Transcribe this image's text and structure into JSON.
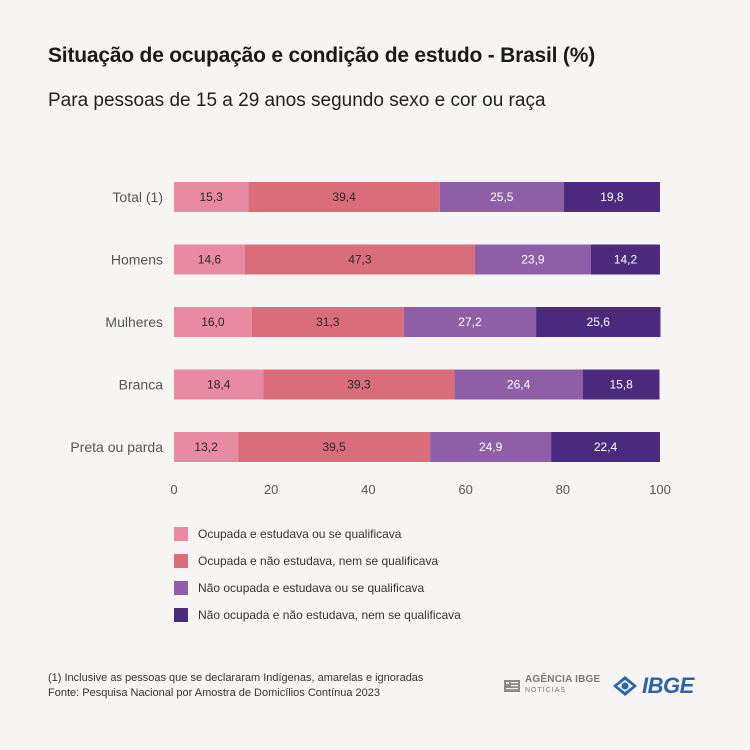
{
  "chart_data": {
    "type": "bar",
    "orientation": "horizontal",
    "stacked": true,
    "title": "Situação de ocupação e condição de estudo - Brasil (%)",
    "subtitle": "Para pessoas de 15 a 29 anos segundo sexo e cor ou raça",
    "categories": [
      "Total (1)",
      "Homens",
      "Mulheres",
      "Branca",
      "Preta ou parda"
    ],
    "series": [
      {
        "name": "Ocupada e estudava ou se qualificava",
        "color": "#e98aa3",
        "values": [
          15.3,
          14.6,
          16.0,
          18.4,
          13.2
        ],
        "labels": [
          "15,3",
          "14,6",
          "16,0",
          "18,4",
          "13,2"
        ]
      },
      {
        "name": "Ocupada e não estudava, nem se qualificava",
        "color": "#d96d7a",
        "values": [
          39.4,
          47.3,
          31.3,
          39.3,
          39.5
        ],
        "labels": [
          "39,4",
          "47,3",
          "31,3",
          "39,3",
          "39,5"
        ]
      },
      {
        "name": "Não ocupada e estudava ou se qualificava",
        "color": "#8e5fa6",
        "values": [
          25.5,
          23.9,
          27.2,
          26.4,
          24.9
        ],
        "labels": [
          "25,5",
          "23,9",
          "27,2",
          "26,4",
          "24,9"
        ]
      },
      {
        "name": "Não ocupada e não estudava, nem se qualificava",
        "color": "#4b2a7d",
        "values": [
          19.8,
          14.2,
          25.6,
          15.8,
          22.4
        ],
        "labels": [
          "19,8",
          "14,2",
          "25,6",
          "15,8",
          "22,4"
        ]
      }
    ],
    "xlim": [
      0,
      100
    ],
    "xticks": [
      0,
      20,
      40,
      60,
      80,
      100
    ],
    "grid": false,
    "legend": "bottom-left"
  },
  "footer": {
    "note": "(1) Inclusive as pessoas que se declararam Indígenas, amarelas e ignoradas",
    "source": "Fonte: Pesquisa Nacional por Amostra de Domicílios Contínua 2023"
  },
  "logos": {
    "agencia_main": "AGÊNCIA IBGE",
    "agencia_sub": "NOTÍCIAS",
    "ibge": "IBGE"
  }
}
